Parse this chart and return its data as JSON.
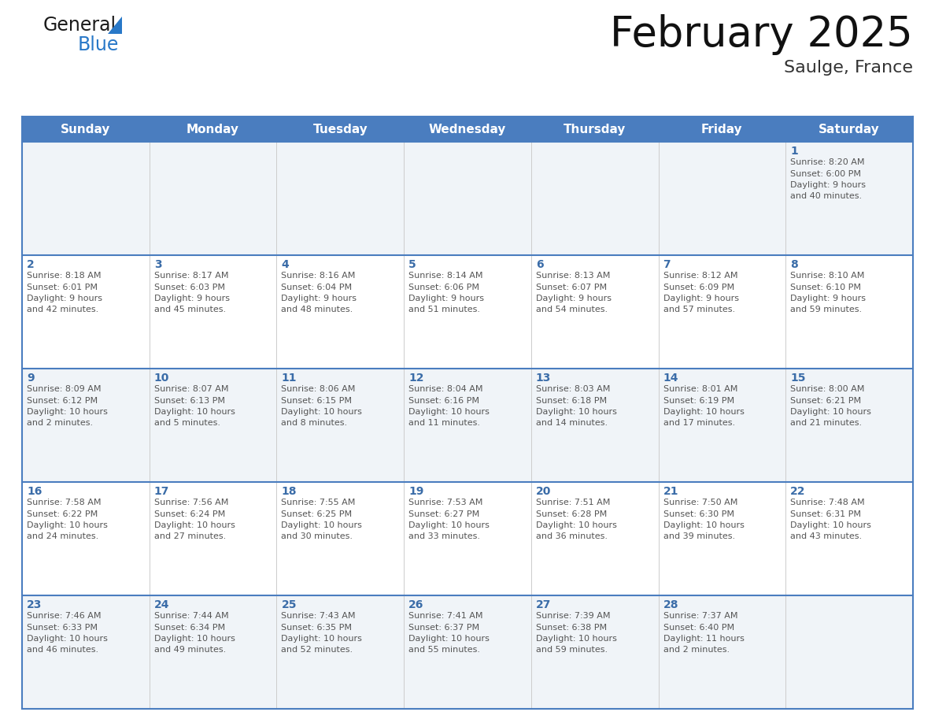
{
  "title": "February 2025",
  "subtitle": "Saulge, France",
  "days_of_week": [
    "Sunday",
    "Monday",
    "Tuesday",
    "Wednesday",
    "Thursday",
    "Friday",
    "Saturday"
  ],
  "header_bg": "#4a7dbf",
  "header_text_color": "#ffffff",
  "cell_bg_light": "#f0f4f8",
  "cell_bg_white": "#ffffff",
  "day_text_color": "#3a6ca8",
  "info_text_color": "#555555",
  "border_color": "#4a7dbf",
  "grid_color": "#cccccc",
  "logo_general_color": "#1a1a1a",
  "logo_blue_color": "#2878c8",
  "logo_triangle_color": "#2878c8",
  "weeks": [
    [
      {
        "day": null,
        "sunrise": null,
        "sunset": null,
        "daylight": null
      },
      {
        "day": null,
        "sunrise": null,
        "sunset": null,
        "daylight": null
      },
      {
        "day": null,
        "sunrise": null,
        "sunset": null,
        "daylight": null
      },
      {
        "day": null,
        "sunrise": null,
        "sunset": null,
        "daylight": null
      },
      {
        "day": null,
        "sunrise": null,
        "sunset": null,
        "daylight": null
      },
      {
        "day": null,
        "sunrise": null,
        "sunset": null,
        "daylight": null
      },
      {
        "day": 1,
        "sunrise": "8:20 AM",
        "sunset": "6:00 PM",
        "daylight": "9 hours and 40 minutes."
      }
    ],
    [
      {
        "day": 2,
        "sunrise": "8:18 AM",
        "sunset": "6:01 PM",
        "daylight": "9 hours and 42 minutes."
      },
      {
        "day": 3,
        "sunrise": "8:17 AM",
        "sunset": "6:03 PM",
        "daylight": "9 hours and 45 minutes."
      },
      {
        "day": 4,
        "sunrise": "8:16 AM",
        "sunset": "6:04 PM",
        "daylight": "9 hours and 48 minutes."
      },
      {
        "day": 5,
        "sunrise": "8:14 AM",
        "sunset": "6:06 PM",
        "daylight": "9 hours and 51 minutes."
      },
      {
        "day": 6,
        "sunrise": "8:13 AM",
        "sunset": "6:07 PM",
        "daylight": "9 hours and 54 minutes."
      },
      {
        "day": 7,
        "sunrise": "8:12 AM",
        "sunset": "6:09 PM",
        "daylight": "9 hours and 57 minutes."
      },
      {
        "day": 8,
        "sunrise": "8:10 AM",
        "sunset": "6:10 PM",
        "daylight": "9 hours and 59 minutes."
      }
    ],
    [
      {
        "day": 9,
        "sunrise": "8:09 AM",
        "sunset": "6:12 PM",
        "daylight": "10 hours and 2 minutes."
      },
      {
        "day": 10,
        "sunrise": "8:07 AM",
        "sunset": "6:13 PM",
        "daylight": "10 hours and 5 minutes."
      },
      {
        "day": 11,
        "sunrise": "8:06 AM",
        "sunset": "6:15 PM",
        "daylight": "10 hours and 8 minutes."
      },
      {
        "day": 12,
        "sunrise": "8:04 AM",
        "sunset": "6:16 PM",
        "daylight": "10 hours and 11 minutes."
      },
      {
        "day": 13,
        "sunrise": "8:03 AM",
        "sunset": "6:18 PM",
        "daylight": "10 hours and 14 minutes."
      },
      {
        "day": 14,
        "sunrise": "8:01 AM",
        "sunset": "6:19 PM",
        "daylight": "10 hours and 17 minutes."
      },
      {
        "day": 15,
        "sunrise": "8:00 AM",
        "sunset": "6:21 PM",
        "daylight": "10 hours and 21 minutes."
      }
    ],
    [
      {
        "day": 16,
        "sunrise": "7:58 AM",
        "sunset": "6:22 PM",
        "daylight": "10 hours and 24 minutes."
      },
      {
        "day": 17,
        "sunrise": "7:56 AM",
        "sunset": "6:24 PM",
        "daylight": "10 hours and 27 minutes."
      },
      {
        "day": 18,
        "sunrise": "7:55 AM",
        "sunset": "6:25 PM",
        "daylight": "10 hours and 30 minutes."
      },
      {
        "day": 19,
        "sunrise": "7:53 AM",
        "sunset": "6:27 PM",
        "daylight": "10 hours and 33 minutes."
      },
      {
        "day": 20,
        "sunrise": "7:51 AM",
        "sunset": "6:28 PM",
        "daylight": "10 hours and 36 minutes."
      },
      {
        "day": 21,
        "sunrise": "7:50 AM",
        "sunset": "6:30 PM",
        "daylight": "10 hours and 39 minutes."
      },
      {
        "day": 22,
        "sunrise": "7:48 AM",
        "sunset": "6:31 PM",
        "daylight": "10 hours and 43 minutes."
      }
    ],
    [
      {
        "day": 23,
        "sunrise": "7:46 AM",
        "sunset": "6:33 PM",
        "daylight": "10 hours and 46 minutes."
      },
      {
        "day": 24,
        "sunrise": "7:44 AM",
        "sunset": "6:34 PM",
        "daylight": "10 hours and 49 minutes."
      },
      {
        "day": 25,
        "sunrise": "7:43 AM",
        "sunset": "6:35 PM",
        "daylight": "10 hours and 52 minutes."
      },
      {
        "day": 26,
        "sunrise": "7:41 AM",
        "sunset": "6:37 PM",
        "daylight": "10 hours and 55 minutes."
      },
      {
        "day": 27,
        "sunrise": "7:39 AM",
        "sunset": "6:38 PM",
        "daylight": "10 hours and 59 minutes."
      },
      {
        "day": 28,
        "sunrise": "7:37 AM",
        "sunset": "6:40 PM",
        "daylight": "11 hours and 2 minutes."
      },
      {
        "day": null,
        "sunrise": null,
        "sunset": null,
        "daylight": null
      }
    ]
  ],
  "fig_width": 11.88,
  "fig_height": 9.18,
  "dpi": 100
}
